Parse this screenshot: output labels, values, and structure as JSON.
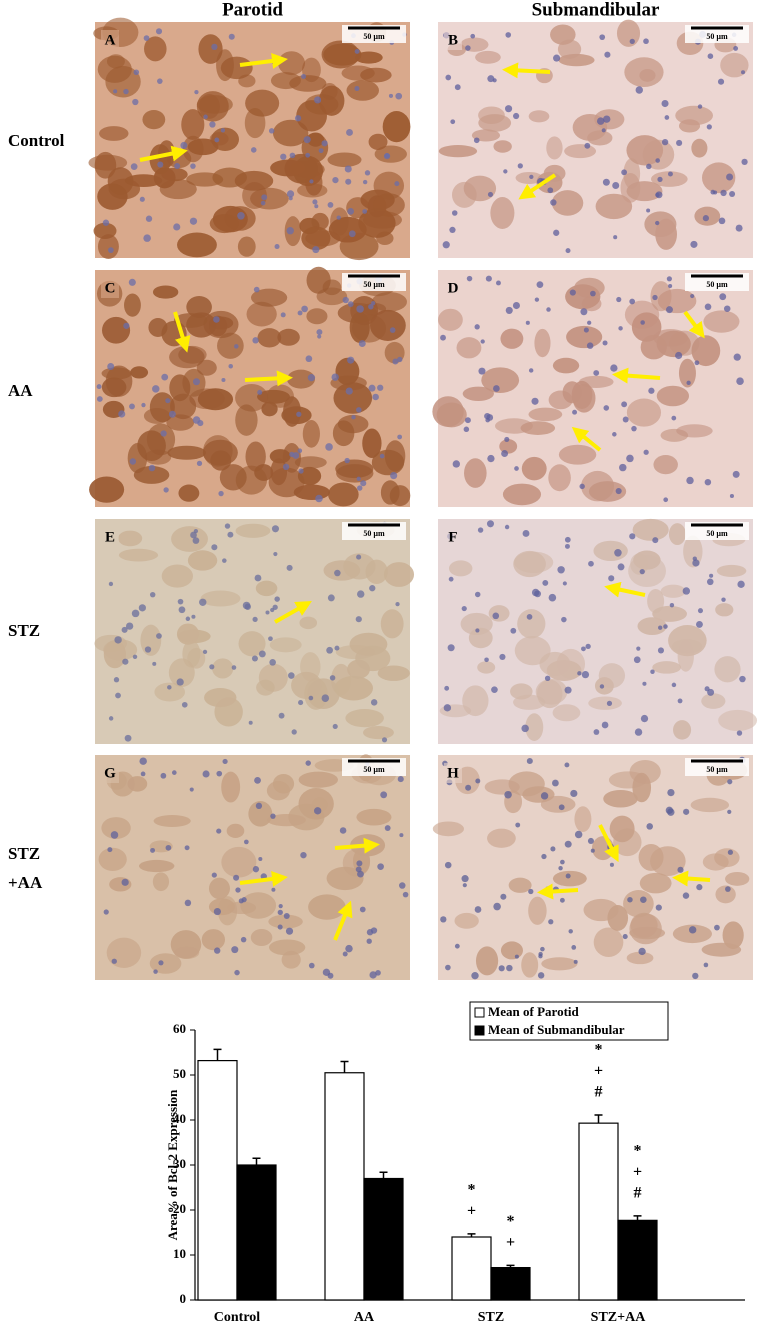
{
  "columns": [
    "Parotid",
    "Submandibular"
  ],
  "rows": [
    [
      "Control"
    ],
    [
      "AA"
    ],
    [
      "STZ"
    ],
    [
      "STZ",
      "+AA"
    ]
  ],
  "panels": [
    {
      "letter": "A",
      "scale": "50 µm"
    },
    {
      "letter": "B",
      "scale": "50 µm"
    },
    {
      "letter": "C",
      "scale": "50 µm"
    },
    {
      "letter": "D",
      "scale": "50 µm"
    },
    {
      "letter": "E",
      "scale": "50 µm"
    },
    {
      "letter": "F",
      "scale": "50 µm"
    },
    {
      "letter": "G",
      "scale": "50 µm"
    },
    {
      "letter": "H",
      "scale": "50 µm"
    }
  ],
  "chart_data": {
    "type": "bar",
    "ylabel": "Area% of Bcl-2 Expression",
    "categories": [
      "Control",
      "AA",
      "STZ",
      "STZ+AA"
    ],
    "series": [
      {
        "name": "Mean of Parotid",
        "color": "#ffffff",
        "values": [
          53.2,
          50.5,
          14,
          39.3
        ],
        "errors": [
          2.5,
          2.5,
          0.7,
          1.8
        ],
        "annotations": [
          null,
          null,
          [
            "*",
            "+"
          ],
          [
            "*",
            "+",
            "#"
          ]
        ]
      },
      {
        "name": "Mean of Submandibular",
        "color": "#000000",
        "values": [
          30,
          27,
          7.2,
          17.7
        ],
        "errors": [
          1.5,
          1.4,
          0.5,
          1.0
        ],
        "annotations": [
          null,
          null,
          [
            "*",
            "+"
          ],
          [
            "*",
            "+",
            "#"
          ]
        ]
      }
    ],
    "ylim": [
      0,
      60
    ],
    "yticks": [
      0,
      10,
      20,
      30,
      40,
      50,
      60
    ],
    "legend": "top-right"
  }
}
